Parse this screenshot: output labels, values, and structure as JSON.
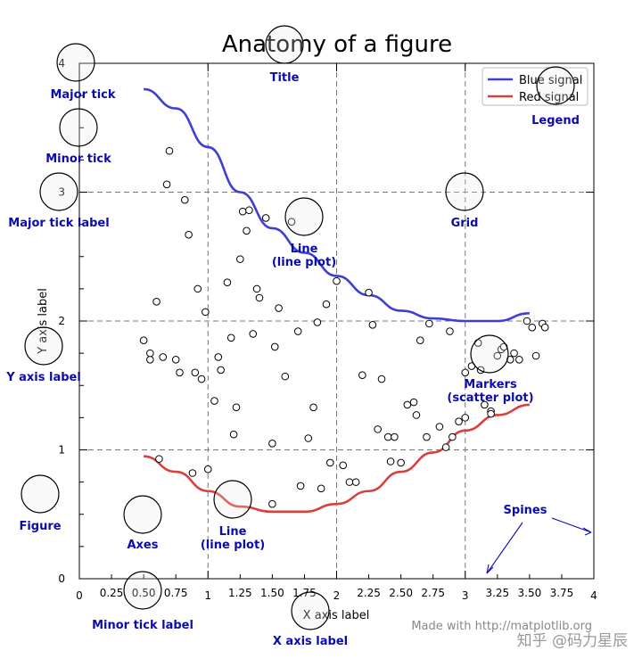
{
  "chart_data": {
    "type": "line",
    "title": "Anatomy of a figure",
    "xlabel": "X axis label",
    "ylabel": "Y axis label",
    "xlim": [
      0,
      4
    ],
    "ylim": [
      0,
      4
    ],
    "xticks_major": [
      "0",
      "1",
      "2",
      "3",
      "4"
    ],
    "xticks_minor": [
      "0.25",
      "0.50",
      "0.75",
      "1.25",
      "1.50",
      "1.75",
      "2.25",
      "2.50",
      "2.75",
      "3.25",
      "3.50",
      "3.75"
    ],
    "yticks_major": [
      "0",
      "1",
      "2",
      "3",
      "4"
    ],
    "grid": "major, dashed",
    "legend_position": "top-right",
    "series": [
      {
        "name": "Blue signal",
        "color": "#3f3fd4",
        "kind": "line",
        "x": [
          0.5,
          0.75,
          1.0,
          1.25,
          1.5,
          1.75,
          2.0,
          2.25,
          2.5,
          2.75,
          3.0,
          3.25,
          3.5
        ],
        "y": [
          3.8,
          3.65,
          3.35,
          3.0,
          2.72,
          2.53,
          2.35,
          2.2,
          2.08,
          2.02,
          2.0,
          2.0,
          2.06
        ]
      },
      {
        "name": "Red signal",
        "color": "#d9403b",
        "kind": "line",
        "x": [
          0.5,
          0.75,
          1.0,
          1.25,
          1.5,
          1.75,
          2.0,
          2.25,
          2.5,
          2.75,
          3.0,
          3.25,
          3.5
        ],
        "y": [
          0.95,
          0.83,
          0.68,
          0.56,
          0.52,
          0.52,
          0.58,
          0.68,
          0.83,
          0.98,
          1.15,
          1.27,
          1.35
        ]
      },
      {
        "name": "Markers",
        "kind": "scatter",
        "points": [
          [
            0.5,
            1.85
          ],
          [
            0.55,
            1.7
          ],
          [
            0.55,
            1.75
          ],
          [
            0.6,
            2.15
          ],
          [
            0.62,
            0.93
          ],
          [
            0.65,
            1.72
          ],
          [
            0.68,
            3.06
          ],
          [
            0.7,
            3.32
          ],
          [
            0.75,
            1.7
          ],
          [
            0.78,
            1.6
          ],
          [
            0.82,
            2.94
          ],
          [
            0.85,
            2.67
          ],
          [
            0.88,
            0.82
          ],
          [
            0.9,
            1.6
          ],
          [
            0.92,
            2.25
          ],
          [
            0.95,
            1.55
          ],
          [
            0.98,
            2.07
          ],
          [
            1.0,
            0.85
          ],
          [
            1.05,
            1.38
          ],
          [
            1.08,
            1.72
          ],
          [
            1.1,
            1.62
          ],
          [
            1.15,
            2.3
          ],
          [
            1.18,
            1.87
          ],
          [
            1.2,
            1.12
          ],
          [
            1.22,
            1.33
          ],
          [
            1.25,
            2.48
          ],
          [
            1.27,
            2.85
          ],
          [
            1.3,
            2.7
          ],
          [
            1.32,
            2.86
          ],
          [
            1.35,
            1.9
          ],
          [
            1.38,
            2.25
          ],
          [
            1.4,
            2.18
          ],
          [
            1.45,
            2.8
          ],
          [
            1.5,
            1.05
          ],
          [
            1.5,
            0.58
          ],
          [
            1.52,
            1.8
          ],
          [
            1.55,
            2.1
          ],
          [
            1.6,
            1.57
          ],
          [
            1.65,
            2.77
          ],
          [
            1.7,
            1.92
          ],
          [
            1.72,
            0.72
          ],
          [
            1.78,
            1.09
          ],
          [
            1.82,
            1.33
          ],
          [
            1.85,
            1.99
          ],
          [
            1.88,
            0.7
          ],
          [
            1.92,
            2.13
          ],
          [
            1.95,
            0.9
          ],
          [
            2.0,
            2.31
          ],
          [
            2.05,
            0.88
          ],
          [
            2.1,
            0.75
          ],
          [
            2.15,
            0.75
          ],
          [
            2.2,
            1.58
          ],
          [
            2.25,
            2.22
          ],
          [
            2.28,
            1.97
          ],
          [
            2.32,
            1.16
          ],
          [
            2.35,
            1.55
          ],
          [
            2.4,
            1.1
          ],
          [
            2.42,
            0.91
          ],
          [
            2.45,
            1.1
          ],
          [
            2.5,
            0.9
          ],
          [
            2.55,
            1.35
          ],
          [
            2.6,
            1.37
          ],
          [
            2.62,
            1.27
          ],
          [
            2.65,
            1.85
          ],
          [
            2.7,
            1.1
          ],
          [
            2.72,
            1.98
          ],
          [
            2.8,
            1.18
          ],
          [
            2.85,
            1.02
          ],
          [
            2.88,
            1.92
          ],
          [
            2.9,
            1.1
          ],
          [
            2.95,
            1.22
          ],
          [
            3.0,
            1.25
          ],
          [
            3.0,
            1.6
          ],
          [
            3.05,
            1.65
          ],
          [
            3.1,
            1.83
          ],
          [
            3.12,
            1.62
          ],
          [
            3.15,
            1.35
          ],
          [
            3.2,
            1.3
          ],
          [
            3.2,
            1.28
          ],
          [
            3.25,
            1.73
          ],
          [
            3.28,
            1.78
          ],
          [
            3.3,
            1.8
          ],
          [
            3.35,
            1.7
          ],
          [
            3.38,
            1.75
          ],
          [
            3.42,
            1.7
          ],
          [
            3.48,
            2.0
          ],
          [
            3.52,
            1.95
          ],
          [
            3.55,
            1.73
          ],
          [
            3.6,
            1.98
          ],
          [
            3.62,
            1.95
          ]
        ]
      }
    ],
    "annotations": [
      {
        "label": "Title"
      },
      {
        "label": "Major tick"
      },
      {
        "label": "Minor tick"
      },
      {
        "label": "Major tick label"
      },
      {
        "label": "Grid"
      },
      {
        "label": "Legend"
      },
      {
        "label": "Line\n(line plot)"
      },
      {
        "label": "Y axis label"
      },
      {
        "label": "Markers\n(scatter plot)"
      },
      {
        "label": "Figure"
      },
      {
        "label": "Axes"
      },
      {
        "label": "Line\n(line plot)"
      },
      {
        "label": "Spines"
      },
      {
        "label": "Minor tick label"
      },
      {
        "label": "X axis label"
      }
    ]
  },
  "footer": {
    "made_with": "Made with http://matplotlib.org",
    "watermark": "知乎 @码力星辰"
  },
  "colors": {
    "annotation": "#0b0bb0",
    "blue_signal": "#3f3fd4",
    "red_signal": "#d9403b"
  }
}
